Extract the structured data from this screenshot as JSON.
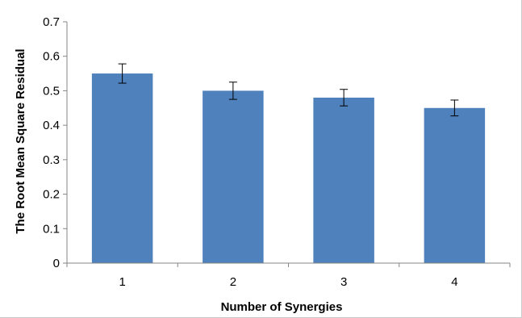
{
  "chart_data": {
    "type": "bar",
    "title": "",
    "xlabel": "Number of Synergies",
    "ylabel": "The Root Mean Square Residual",
    "categories": [
      "1",
      "2",
      "3",
      "4"
    ],
    "values": [
      0.55,
      0.5,
      0.48,
      0.45
    ],
    "error": [
      0.028,
      0.025,
      0.024,
      0.023
    ],
    "ylim": [
      0,
      0.7
    ],
    "yticks": [
      "0",
      "0.1",
      "0.2",
      "0.3",
      "0.4",
      "0.5",
      "0.6",
      "0.7"
    ],
    "grid": false,
    "legend": "none",
    "bar_color": "#4f81bd",
    "axis_color": "#868686"
  }
}
